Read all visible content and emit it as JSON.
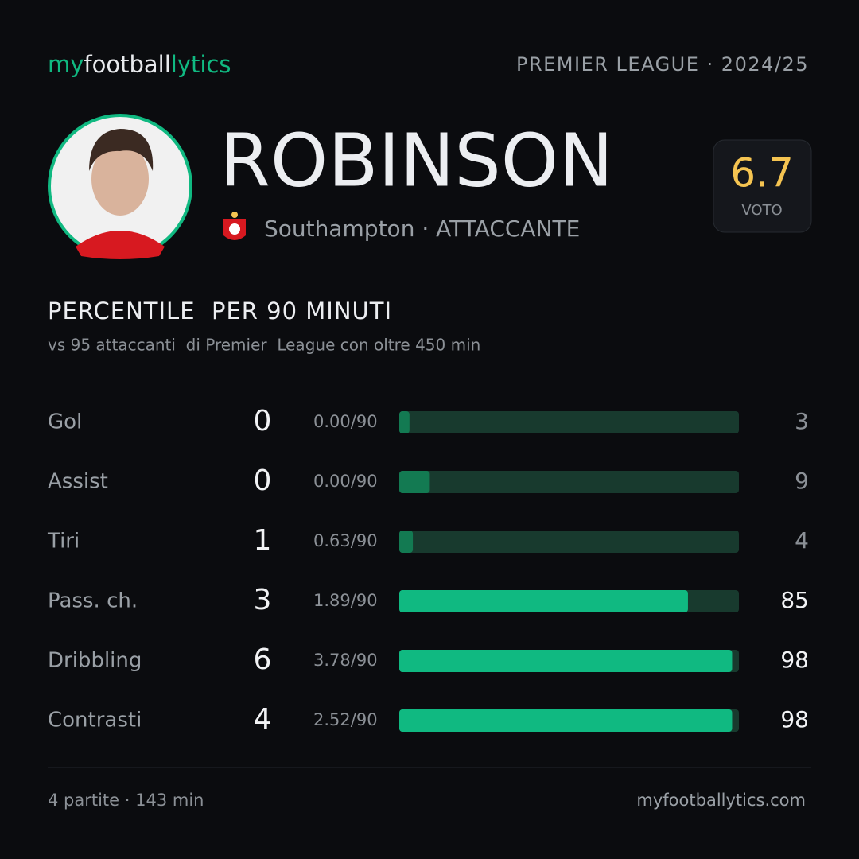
{
  "header": {
    "brand_my": "my",
    "brand_football": "football",
    "brand_lytics": "lytics",
    "league": "PREMIER LEAGUE · 2024/25"
  },
  "player": {
    "name": "ROBINSON",
    "club_line": "Southampton · ATTACCANTE",
    "rating": 6.7,
    "rating_label": "VOTO"
  },
  "section": {
    "title": "PERCENTILE  PER 90 MINUTI",
    "subtitle": "vs 95 attaccanti  di Premier  League con oltre 450 min"
  },
  "rows": [
    {
      "label": "Gol",
      "total": 0,
      "per90": "0.00/90",
      "percentile": 3,
      "color": "#137a52"
    },
    {
      "label": "Assist",
      "total": 0,
      "per90": "0.00/90",
      "percentile": 9,
      "color": "#137a52"
    },
    {
      "label": "Tiri",
      "total": 1,
      "per90": "0.63/90",
      "percentile": 4,
      "color": "#137a52"
    },
    {
      "label": "Pass. ch.",
      "total": 3,
      "per90": "1.89/90",
      "percentile": 85,
      "color": "#10b981"
    },
    {
      "label": "Dribbling",
      "total": 6,
      "per90": "3.78/90",
      "percentile": 98,
      "color": "#10b981"
    },
    {
      "label": "Contrasti",
      "total": 4,
      "per90": "2.52/90",
      "percentile": 98,
      "color": "#10b981"
    }
  ],
  "footer": {
    "stats": "4 partite · 143 min",
    "site": "myfootballytics.com"
  }
}
